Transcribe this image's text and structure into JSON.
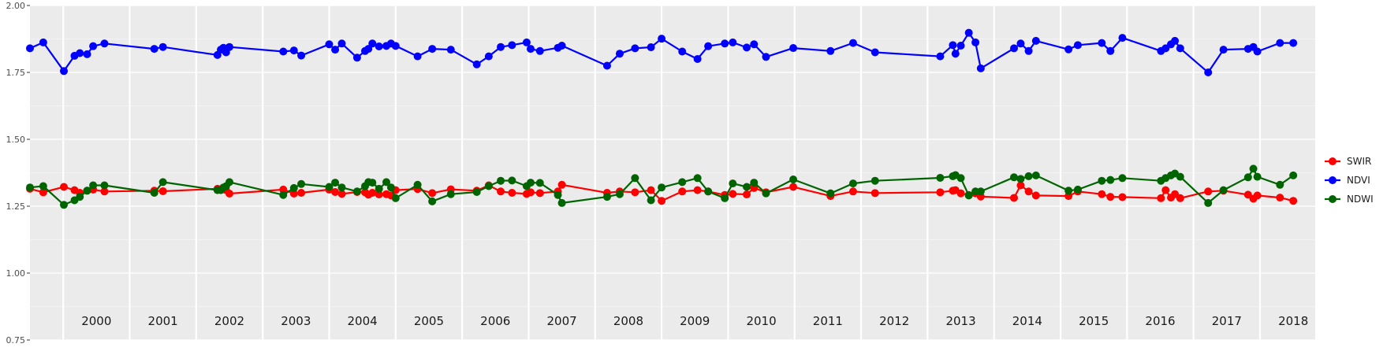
{
  "chart_data": {
    "type": "line",
    "title": "",
    "xlabel": "",
    "ylabel": "",
    "ylim": [
      0.75,
      2.0
    ],
    "xlim": [
      1999.5,
      2018.83
    ],
    "y_ticks": [
      "0.75",
      "1.00",
      "1.25",
      "1.50",
      "1.75",
      "2.00"
    ],
    "y_tick_values": [
      0.75,
      1.0,
      1.25,
      1.5,
      1.75,
      2.0
    ],
    "year_labels": [
      "2000",
      "2001",
      "2002",
      "2003",
      "2004",
      "2005",
      "2006",
      "2007",
      "2008",
      "2009",
      "2010",
      "2011",
      "2012",
      "2013",
      "2014",
      "2015",
      "2016",
      "2017",
      "2018"
    ],
    "year_boundaries": [
      2000,
      2001,
      2002,
      2003,
      2004,
      2005,
      2006,
      2007,
      2008,
      2009,
      2010,
      2011,
      2012,
      2013,
      2014,
      2015,
      2016,
      2017,
      2018
    ],
    "grid": true,
    "legend_position": "right",
    "legend": [
      "SWIR",
      "NDVI",
      "NDWI"
    ],
    "series": [
      {
        "name": "SWIR",
        "color": "#ff0000",
        "x": [
          1999.5,
          1999.7,
          2000.01,
          2000.17,
          2000.25,
          2000.36,
          2000.45,
          2000.62,
          2001.37,
          2001.5,
          2002.32,
          2002.37,
          2002.41,
          2002.45,
          2002.5,
          2003.31,
          2003.47,
          2003.58,
          2004.0,
          2004.09,
          2004.19,
          2004.42,
          2004.54,
          2004.59,
          2004.65,
          2004.75,
          2004.86,
          2004.93,
          2005.0,
          2005.33,
          2005.55,
          2005.83,
          2006.22,
          2006.4,
          2006.58,
          2006.75,
          2006.97,
          2007.03,
          2007.17,
          2007.44,
          2007.5,
          2008.18,
          2008.37,
          2008.6,
          2008.84,
          2009.0,
          2009.31,
          2009.54,
          2009.7,
          2009.95,
          2010.07,
          2010.28,
          2010.39,
          2010.57,
          2010.98,
          2011.54,
          2011.88,
          2012.21,
          2013.19,
          2013.38,
          2013.42,
          2013.5,
          2013.62,
          2013.72,
          2013.8,
          2014.3,
          2014.4,
          2014.52,
          2014.63,
          2015.12,
          2015.26,
          2015.62,
          2015.75,
          2015.93,
          2016.51,
          2016.58,
          2016.66,
          2016.72,
          2016.8,
          2017.22,
          2017.45,
          2017.82,
          2017.9,
          2017.96,
          2018.3,
          2018.5
        ],
        "y": [
          1.315,
          1.302,
          1.322,
          1.31,
          1.3,
          1.308,
          1.312,
          1.305,
          1.308,
          1.306,
          1.315,
          1.312,
          1.318,
          1.31,
          1.297,
          1.312,
          1.297,
          1.3,
          1.312,
          1.303,
          1.296,
          1.303,
          1.302,
          1.293,
          1.3,
          1.294,
          1.295,
          1.29,
          1.31,
          1.314,
          1.299,
          1.313,
          1.308,
          1.328,
          1.305,
          1.3,
          1.296,
          1.302,
          1.299,
          1.305,
          1.33,
          1.3,
          1.305,
          1.302,
          1.31,
          1.27,
          1.305,
          1.31,
          1.305,
          1.292,
          1.296,
          1.294,
          1.318,
          1.302,
          1.322,
          1.288,
          1.305,
          1.299,
          1.302,
          1.308,
          1.31,
          1.298,
          1.292,
          1.298,
          1.286,
          1.281,
          1.328,
          1.305,
          1.29,
          1.288,
          1.305,
          1.295,
          1.285,
          1.284,
          1.28,
          1.31,
          1.282,
          1.295,
          1.28,
          1.305,
          1.308,
          1.293,
          1.278,
          1.29,
          1.282,
          1.27
        ]
      },
      {
        "name": "NDVI",
        "color": "#0000ff",
        "x": [
          1999.5,
          1999.7,
          2000.01,
          2000.17,
          2000.25,
          2000.36,
          2000.45,
          2000.62,
          2001.37,
          2001.5,
          2002.32,
          2002.37,
          2002.41,
          2002.45,
          2002.5,
          2003.31,
          2003.47,
          2003.58,
          2004.0,
          2004.09,
          2004.19,
          2004.42,
          2004.54,
          2004.59,
          2004.65,
          2004.75,
          2004.86,
          2004.93,
          2005.0,
          2005.33,
          2005.55,
          2005.83,
          2006.22,
          2006.4,
          2006.58,
          2006.75,
          2006.97,
          2007.03,
          2007.17,
          2007.44,
          2007.5,
          2008.18,
          2008.37,
          2008.6,
          2008.84,
          2009.0,
          2009.31,
          2009.54,
          2009.7,
          2009.95,
          2010.07,
          2010.28,
          2010.39,
          2010.57,
          2010.98,
          2011.54,
          2011.88,
          2012.21,
          2013.19,
          2013.38,
          2013.42,
          2013.5,
          2013.62,
          2013.72,
          2013.8,
          2014.3,
          2014.4,
          2014.52,
          2014.63,
          2015.12,
          2015.26,
          2015.62,
          2015.75,
          2015.93,
          2016.51,
          2016.58,
          2016.66,
          2016.72,
          2016.8,
          2017.22,
          2017.45,
          2017.82,
          2017.9,
          2017.96,
          2018.3,
          2018.5
        ],
        "y": [
          1.84,
          1.862,
          1.755,
          1.812,
          1.822,
          1.818,
          1.848,
          1.858,
          1.838,
          1.845,
          1.815,
          1.835,
          1.842,
          1.825,
          1.845,
          1.828,
          1.832,
          1.813,
          1.855,
          1.835,
          1.858,
          1.805,
          1.83,
          1.838,
          1.858,
          1.847,
          1.849,
          1.858,
          1.849,
          1.81,
          1.838,
          1.835,
          1.78,
          1.81,
          1.845,
          1.852,
          1.862,
          1.838,
          1.83,
          1.842,
          1.85,
          1.775,
          1.82,
          1.84,
          1.844,
          1.876,
          1.828,
          1.8,
          1.848,
          1.858,
          1.862,
          1.843,
          1.855,
          1.808,
          1.841,
          1.83,
          1.86,
          1.825,
          1.81,
          1.852,
          1.82,
          1.85,
          1.898,
          1.862,
          1.765,
          1.84,
          1.858,
          1.83,
          1.868,
          1.836,
          1.852,
          1.86,
          1.83,
          1.879,
          1.83,
          1.84,
          1.855,
          1.868,
          1.84,
          1.75,
          1.835,
          1.838,
          1.845,
          1.828,
          1.86,
          1.86
        ]
      },
      {
        "name": "NDWI",
        "color": "#006400",
        "x": [
          1999.5,
          1999.7,
          2000.01,
          2000.17,
          2000.25,
          2000.36,
          2000.45,
          2000.62,
          2001.37,
          2001.5,
          2002.32,
          2002.37,
          2002.41,
          2002.45,
          2002.5,
          2003.31,
          2003.47,
          2003.58,
          2004.0,
          2004.09,
          2004.19,
          2004.42,
          2004.54,
          2004.59,
          2004.65,
          2004.75,
          2004.86,
          2004.93,
          2005.0,
          2005.33,
          2005.55,
          2005.83,
          2006.22,
          2006.4,
          2006.58,
          2006.75,
          2006.97,
          2007.03,
          2007.17,
          2007.44,
          2007.5,
          2008.18,
          2008.37,
          2008.6,
          2008.84,
          2009.0,
          2009.31,
          2009.54,
          2009.7,
          2009.95,
          2010.07,
          2010.28,
          2010.39,
          2010.57,
          2010.98,
          2011.54,
          2011.88,
          2012.21,
          2013.19,
          2013.38,
          2013.42,
          2013.5,
          2013.62,
          2013.72,
          2013.8,
          2014.3,
          2014.4,
          2014.52,
          2014.63,
          2015.12,
          2015.26,
          2015.62,
          2015.75,
          2015.93,
          2016.51,
          2016.58,
          2016.66,
          2016.72,
          2016.8,
          2017.22,
          2017.45,
          2017.82,
          2017.9,
          2017.96,
          2018.3,
          2018.5
        ],
        "y": [
          1.32,
          1.325,
          1.255,
          1.272,
          1.285,
          1.308,
          1.328,
          1.328,
          1.3,
          1.34,
          1.31,
          1.31,
          1.32,
          1.325,
          1.34,
          1.292,
          1.318,
          1.333,
          1.322,
          1.338,
          1.32,
          1.305,
          1.325,
          1.34,
          1.338,
          1.315,
          1.34,
          1.32,
          1.28,
          1.33,
          1.268,
          1.295,
          1.303,
          1.325,
          1.345,
          1.346,
          1.325,
          1.338,
          1.337,
          1.292,
          1.262,
          1.285,
          1.295,
          1.355,
          1.272,
          1.32,
          1.34,
          1.355,
          1.305,
          1.28,
          1.335,
          1.322,
          1.338,
          1.298,
          1.35,
          1.298,
          1.335,
          1.345,
          1.356,
          1.362,
          1.366,
          1.355,
          1.29,
          1.305,
          1.305,
          1.358,
          1.352,
          1.362,
          1.365,
          1.308,
          1.312,
          1.345,
          1.348,
          1.355,
          1.345,
          1.355,
          1.365,
          1.372,
          1.36,
          1.262,
          1.31,
          1.358,
          1.39,
          1.36,
          1.33,
          1.365
        ]
      }
    ]
  }
}
